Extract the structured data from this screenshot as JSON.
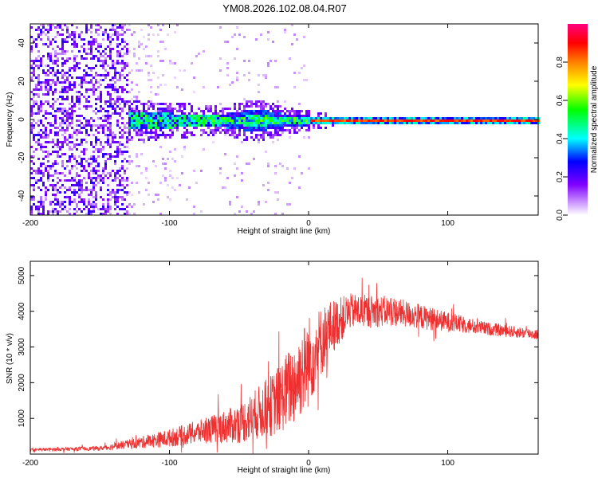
{
  "title": "YM08.2026.102.08.04.R07",
  "chart_data": [
    {
      "type": "heatmap",
      "name": "spectrogram",
      "xlabel": "Height of straight line (km)",
      "ylabel": "Frequency (Hz)",
      "xlim": [
        -200,
        165
      ],
      "ylim": [
        -50,
        50
      ],
      "xticks": [
        -200,
        -100,
        0,
        100
      ],
      "yticks": [
        -40,
        -20,
        0,
        20,
        40
      ],
      "colorbar": {
        "label": "Normalized spectral amplitude",
        "range": [
          0,
          1
        ],
        "ticks": [
          0.0,
          0.2,
          0.4,
          0.6,
          0.8
        ],
        "colors": [
          "#ffffff",
          "#8000ff",
          "#0000ff",
          "#00ffff",
          "#00ff00",
          "#ffff00",
          "#ff8000",
          "#ff0000",
          "#ff0080"
        ]
      },
      "regions": [
        {
          "x": [
            -200,
            -130
          ],
          "description_value": 0.12,
          "freq_spread": 50
        },
        {
          "x": [
            -130,
            0
          ],
          "description_value": 0.35,
          "freq_spread": 8
        },
        {
          "x": [
            0,
            165
          ],
          "description_value": 0.85,
          "freq_spread": 1.5
        }
      ]
    },
    {
      "type": "line",
      "name": "snr",
      "xlabel": "Height of straight line (km)",
      "ylabel": "SNR (10 * v/v)",
      "xlim": [
        -200,
        165
      ],
      "ylim": [
        0,
        5400
      ],
      "xticks": [
        -200,
        -100,
        0,
        100
      ],
      "yticks": [
        1000,
        2000,
        3000,
        4000,
        5000
      ],
      "color": "#ee3030",
      "envelope": {
        "x": [
          -200,
          -150,
          -125,
          -100,
          -75,
          -50,
          -25,
          -10,
          0,
          15,
          30,
          60,
          100,
          130,
          165
        ],
        "mean": [
          120,
          160,
          300,
          450,
          650,
          850,
          1400,
          2000,
          2600,
          3500,
          4000,
          4000,
          3700,
          3500,
          3350
        ],
        "noise": [
          40,
          60,
          150,
          250,
          350,
          550,
          900,
          1200,
          1300,
          800,
          500,
          420,
          280,
          180,
          150
        ]
      }
    }
  ]
}
